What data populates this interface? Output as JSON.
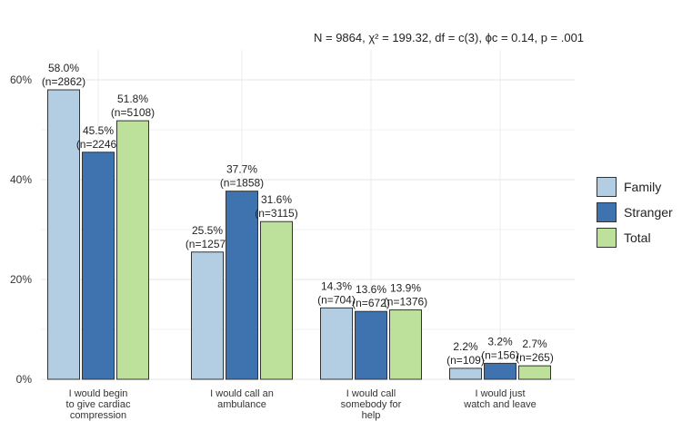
{
  "chart_data": {
    "type": "bar",
    "title": "",
    "annotation": "N = 9864,  χ² = 199.32,  df = c(3),  ϕc = 0.14,  p = .001",
    "categories": [
      [
        "I would begin",
        "to give cardiac",
        "compression"
      ],
      [
        "I would call an",
        "ambulance"
      ],
      [
        "I would call",
        "somebody for",
        "help"
      ],
      [
        "I would just",
        "watch and leave"
      ]
    ],
    "series": [
      {
        "name": "Family",
        "color": "#b3cde3",
        "values": [
          58.0,
          25.5,
          14.3,
          2.2
        ],
        "labels": [
          "58.0%",
          "25.5%",
          "14.3%",
          "2.2%"
        ],
        "n": [
          "(n=2862)",
          "(n=1257)",
          "(n=704)",
          "(n=109)"
        ]
      },
      {
        "name": "Stranger",
        "color": "#3f73b0",
        "values": [
          45.5,
          37.7,
          13.6,
          3.2
        ],
        "labels": [
          "45.5%",
          "37.7%",
          "13.6%",
          "3.2%"
        ],
        "n": [
          "(n=2246)",
          "(n=1858)",
          "(n=672)",
          "(n=156)"
        ]
      },
      {
        "name": "Total",
        "color": "#bde19b",
        "values": [
          51.8,
          31.6,
          13.9,
          2.7
        ],
        "labels": [
          "51.8%",
          "31.6%",
          "13.9%",
          "2.7%"
        ],
        "n": [
          "(n=5108)",
          "(n=3115)",
          "(n=1376)",
          "(n=265)"
        ]
      }
    ],
    "yticks": [
      "0%",
      "20%",
      "40%",
      "60%"
    ],
    "ytick_values": [
      0,
      20,
      40,
      60
    ],
    "ylim": [
      0,
      65
    ],
    "xlabel": "",
    "ylabel": "",
    "legend_position": "right",
    "grid": true
  }
}
